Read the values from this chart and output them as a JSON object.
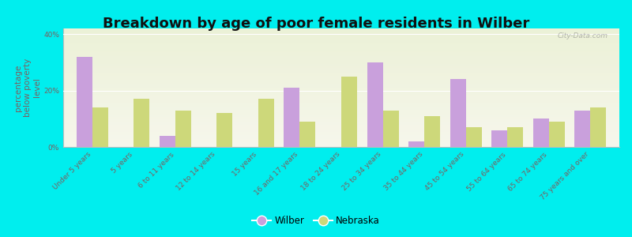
{
  "title": "Breakdown by age of poor female residents in Wilber",
  "ylabel": "percentage\nbelow poverty\nlevel",
  "categories": [
    "Under 5 years",
    "5 years",
    "6 to 11 years",
    "12 to 14 years",
    "15 years",
    "16 and 17 years",
    "18 to 24 years",
    "25 to 34 years",
    "35 to 44 years",
    "45 to 54 years",
    "55 to 64 years",
    "65 to 74 years",
    "75 years and over"
  ],
  "wilber": [
    32,
    0,
    4,
    0,
    0,
    21,
    0,
    30,
    2,
    24,
    6,
    10,
    13
  ],
  "nebraska": [
    14,
    17,
    13,
    12,
    17,
    9,
    25,
    13,
    11,
    7,
    7,
    9,
    14
  ],
  "wilber_color": "#c9a0dc",
  "nebraska_color": "#cdd87a",
  "background_color": "#00eeee",
  "plot_bg_color": "#f5f5e8",
  "ylim": [
    0,
    42
  ],
  "yticks": [
    0,
    20,
    40
  ],
  "ytick_labels": [
    "0%",
    "20%",
    "40%"
  ],
  "bar_width": 0.38,
  "title_fontsize": 13,
  "axis_label_fontsize": 7.5,
  "tick_fontsize": 6.5,
  "legend_fontsize": 8.5,
  "tick_color": "#7a6060",
  "watermark": "City-Data.com"
}
